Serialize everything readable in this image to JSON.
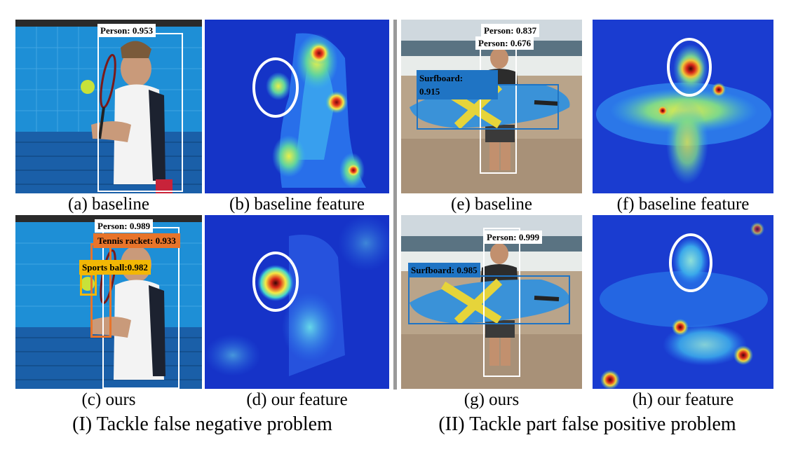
{
  "panels": [
    {
      "id": "a",
      "caption": "(a) baseline"
    },
    {
      "id": "b",
      "caption": "(b) baseline feature"
    },
    {
      "id": "c",
      "caption": "(c) ours"
    },
    {
      "id": "d",
      "caption": "(d) our feature"
    },
    {
      "id": "e",
      "caption": "(e) baseline"
    },
    {
      "id": "f",
      "caption": "(f) baseline feature"
    },
    {
      "id": "g",
      "caption": "(g) ours"
    },
    {
      "id": "h",
      "caption": "(h) our feature"
    }
  ],
  "detections": {
    "a": [
      {
        "label": "Person: 0.953"
      }
    ],
    "c": [
      {
        "label": "Person: 0.989"
      },
      {
        "label": "Tennis racket: 0.933"
      },
      {
        "label": "Sports ball:0.982"
      }
    ],
    "e": [
      {
        "label": "Person: 0.837"
      },
      {
        "label": "Person: 0.676"
      },
      {
        "label": "Surfboard:",
        "label2": "0.915"
      }
    ],
    "g": [
      {
        "label": "Person: 0.999"
      },
      {
        "label": "Surfboard: 0.985"
      }
    ]
  },
  "section_captions": {
    "left": "(I) Tackle false negative problem",
    "right": "(II) Tackle part false positive problem"
  },
  "colors": {
    "person_box": "#ffffff",
    "racket_box": "#e8742a",
    "ball_box": "#f2b705",
    "surfboard_box": "#1f74c4",
    "highlight_circle": "#ffffff",
    "divider": "#9a9a9a"
  }
}
